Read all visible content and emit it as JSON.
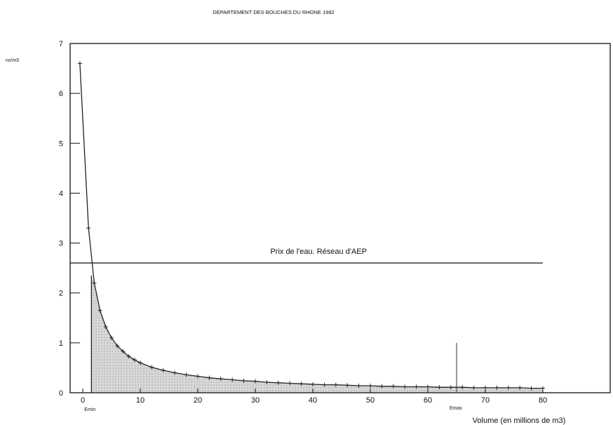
{
  "chart_data": {
    "type": "line",
    "title": "DEPARTEMENT DES BOUCHES DU RHONE 1982",
    "ylabel": "nx/m3",
    "xlabel": "Volume (en millions de m3)",
    "xlim": [
      -1.5,
      90
    ],
    "ylim": [
      0,
      7
    ],
    "x_ticks": [
      0,
      10,
      20,
      30,
      40,
      50,
      60,
      70,
      80
    ],
    "y_ticks": [
      0,
      1,
      2,
      3,
      4,
      5,
      6,
      7
    ],
    "series": [
      {
        "x": [
          -0.5,
          1,
          2,
          3,
          4,
          5,
          6,
          7,
          8,
          9,
          10,
          12,
          14,
          16,
          18,
          20,
          22,
          24,
          26,
          28,
          30,
          32,
          34,
          36,
          38,
          40,
          42,
          44,
          46,
          48,
          50,
          52,
          54,
          56,
          58,
          60,
          62,
          64,
          66,
          68,
          70,
          72,
          74,
          76,
          78,
          80
        ],
        "y": [
          6.6,
          3.3,
          2.2,
          1.65,
          1.32,
          1.1,
          0.94,
          0.83,
          0.73,
          0.66,
          0.6,
          0.51,
          0.45,
          0.4,
          0.36,
          0.33,
          0.3,
          0.28,
          0.26,
          0.24,
          0.23,
          0.21,
          0.2,
          0.19,
          0.18,
          0.17,
          0.16,
          0.16,
          0.15,
          0.14,
          0.14,
          0.13,
          0.13,
          0.12,
          0.12,
          0.12,
          0.11,
          0.11,
          0.11,
          0.1,
          0.1,
          0.1,
          0.1,
          0.1,
          0.09,
          0.09
        ]
      }
    ],
    "price_line": {
      "label": "Prix de l'eau. Réseau d'AEP",
      "y": 2.6,
      "x_from": -1.5,
      "x_to": 80
    },
    "emin": {
      "label": "Emin",
      "x": 1.5
    },
    "emax": {
      "label": "Emax",
      "x": 65,
      "y_top": 1
    },
    "shade_from_x": 1.5,
    "shade_to_x": 80,
    "line_color": "#222222",
    "shade_color": "#c8c8c8"
  }
}
